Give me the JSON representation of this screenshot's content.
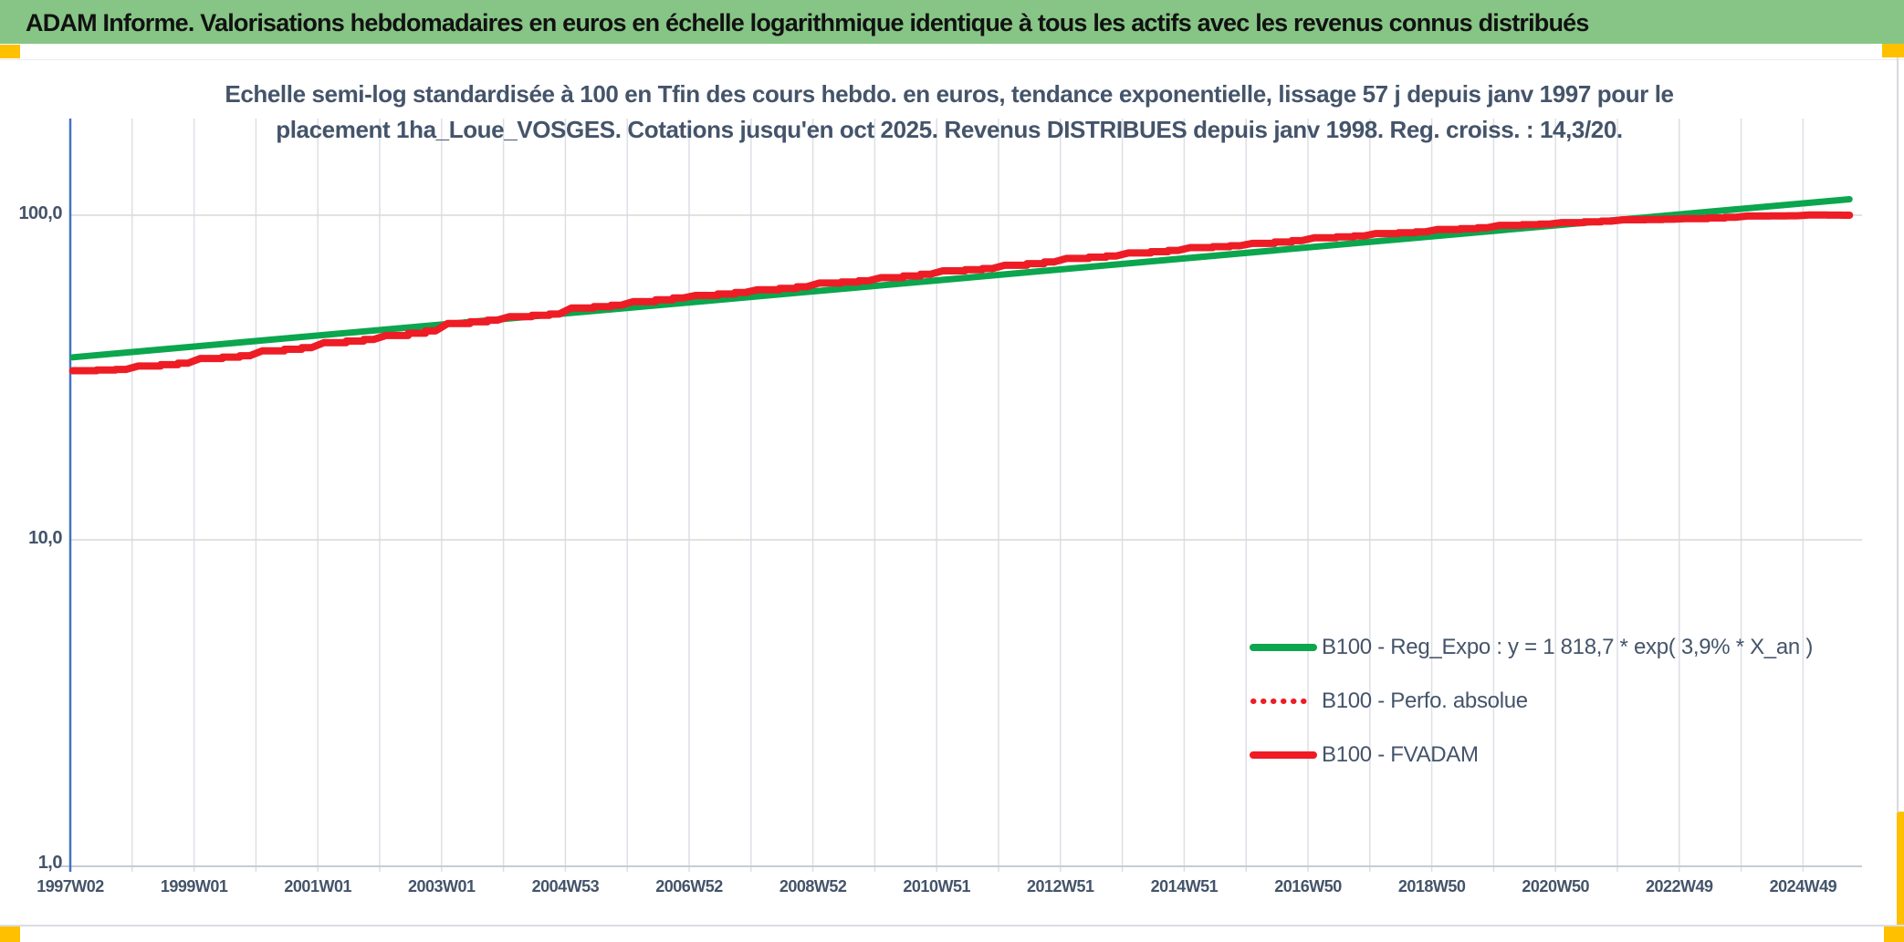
{
  "header": {
    "title": "ADAM Informe. Valorisations hebdomadaires en euros en échelle logarithmique identique à tous les actifs avec les revenus connus distribués"
  },
  "chart": {
    "title_line1": "Echelle semi-log standardisée à 100 en Tfin des cours hebdo. en euros, tendance exponentielle, lissage 57 j depuis janv 1997 pour le",
    "title_line2": "placement 1ha_Loue_VOSGES. Cotations jusqu'en oct 2025. Revenus DISTRIBUES depuis janv 1998. Reg. croiss. : 14,3/20."
  },
  "colors": {
    "header_green": "#86C585",
    "corner_yellow": "#FFC000",
    "trend_green": "#0BA64E",
    "series_red": "#EE1C25",
    "axis_text": "#44546A",
    "gridline": "#DCDFE5",
    "y_axis_line": "#4472C4",
    "x_axis_line": "#C6CCD5"
  },
  "legend": {
    "items": [
      {
        "label": "B100 - Reg_Expo : y = 1 818,7 * exp( 3,9% *  X_an )",
        "color": "#0BA64E",
        "style": "solid"
      },
      {
        "label": "B100 - Perfo. absolue",
        "color": "#EE1C25",
        "style": "dotted"
      },
      {
        "label": "B100 - FVADAM",
        "color": "#EE1C25",
        "style": "solid"
      }
    ]
  },
  "chart_data": {
    "type": "line",
    "title": "Echelle semi-log standardisée à 100 en Tfin des cours hebdo. en euros, tendance exponentielle, lissage 57 j depuis janv 1997 pour le placement 1ha_Loue_VOSGES. Cotations jusqu'en oct 2025. Revenus DISTRIBUES depuis janv 1998. Reg. croiss. : 14,3/20.",
    "y_axis": {
      "scale": "log",
      "ticks": [
        {
          "label": "100,0",
          "value": 100
        },
        {
          "label": "10,0",
          "value": 10
        },
        {
          "label": "1,0",
          "value": 1
        }
      ],
      "range": [
        1,
        200
      ],
      "grid": true
    },
    "x_axis": {
      "unit": "ISO week",
      "start_year": 1997.0,
      "end_year": 2025.75,
      "gridline_interval_years": 1,
      "labels": [
        "1997W02",
        "1999W01",
        "2001W01",
        "2003W01",
        "2004W53",
        "2006W52",
        "2008W52",
        "2010W51",
        "2012W51",
        "2014W51",
        "2016W50",
        "2018W50",
        "2020W50",
        "2022W49",
        "2024W49"
      ],
      "label_interval_years": 2
    },
    "legend_position": "inside-right",
    "series": [
      {
        "name": "B100 - Reg_Expo : y = 1 818,7 * exp( 3,9% *  X_an )",
        "color": "#0BA64E",
        "style": "solid",
        "width": 7,
        "points": [
          [
            1997.04,
            36.5
          ],
          [
            2025.75,
            112.0
          ]
        ]
      },
      {
        "name": "B100 - Perfo. absolue",
        "color": "#EE1C25",
        "style": "dotted",
        "width": 5,
        "note": "coincides with B100 - FVADAM (hidden beneath it)",
        "points_same_as": "B100 - FVADAM"
      },
      {
        "name": "B100 - FVADAM",
        "color": "#EE1C25",
        "style": "solid",
        "width": 8,
        "points": [
          [
            1997.04,
            33.2
          ],
          [
            1997.9,
            33.5
          ],
          [
            1998.1,
            34.3
          ],
          [
            1998.9,
            35.0
          ],
          [
            1999.1,
            36.2
          ],
          [
            1999.9,
            36.9
          ],
          [
            2000.1,
            38.2
          ],
          [
            2000.9,
            39.1
          ],
          [
            2001.1,
            40.5
          ],
          [
            2001.9,
            41.4
          ],
          [
            2002.1,
            42.6
          ],
          [
            2002.9,
            44.0
          ],
          [
            2003.1,
            46.4
          ],
          [
            2003.9,
            47.5
          ],
          [
            2004.1,
            48.7
          ],
          [
            2004.9,
            49.6
          ],
          [
            2005.1,
            51.8
          ],
          [
            2005.9,
            52.8
          ],
          [
            2006.1,
            54.2
          ],
          [
            2006.9,
            55.6
          ],
          [
            2007.1,
            56.6
          ],
          [
            2007.9,
            57.8
          ],
          [
            2008.1,
            58.9
          ],
          [
            2008.9,
            60.2
          ],
          [
            2009.1,
            61.8
          ],
          [
            2009.9,
            62.8
          ],
          [
            2010.1,
            64.2
          ],
          [
            2010.9,
            65.8
          ],
          [
            2011.1,
            67.4
          ],
          [
            2011.9,
            68.5
          ],
          [
            2012.1,
            70.1
          ],
          [
            2012.9,
            71.8
          ],
          [
            2013.1,
            73.6
          ],
          [
            2013.9,
            74.9
          ],
          [
            2014.1,
            76.5
          ],
          [
            2014.9,
            77.9
          ],
          [
            2015.1,
            79.5
          ],
          [
            2015.9,
            80.5
          ],
          [
            2016.1,
            81.9
          ],
          [
            2016.9,
            83.5
          ],
          [
            2017.1,
            85.2
          ],
          [
            2017.9,
            86.3
          ],
          [
            2018.1,
            87.8
          ],
          [
            2018.9,
            88.9
          ],
          [
            2019.1,
            90.4
          ],
          [
            2019.9,
            91.5
          ],
          [
            2020.1,
            93.1
          ],
          [
            2020.9,
            93.9
          ],
          [
            2021.1,
            94.9
          ],
          [
            2021.9,
            95.9
          ],
          [
            2022.1,
            96.8
          ],
          [
            2022.9,
            97.2
          ],
          [
            2023.1,
            97.6
          ],
          [
            2023.9,
            98.5
          ],
          [
            2024.1,
            99.4
          ],
          [
            2024.9,
            99.6
          ],
          [
            2025.1,
            100.1
          ],
          [
            2025.75,
            100.0
          ]
        ]
      }
    ]
  }
}
